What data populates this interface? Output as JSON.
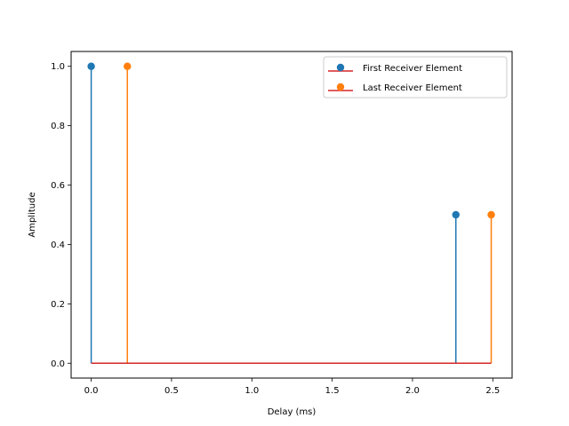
{
  "chart_data": {
    "type": "stem",
    "xlabel": "Delay (ms)",
    "ylabel": "Amplitude",
    "xlim": [
      -0.125,
      2.62
    ],
    "ylim": [
      -0.05,
      1.05
    ],
    "xticks": [
      0.0,
      0.5,
      1.0,
      1.5,
      2.0,
      2.5
    ],
    "xtick_labels": [
      "0.0",
      "0.5",
      "1.0",
      "1.5",
      "2.0",
      "2.5"
    ],
    "yticks": [
      0.0,
      0.2,
      0.4,
      0.6,
      0.8,
      1.0
    ],
    "ytick_labels": [
      "0.0",
      "0.2",
      "0.4",
      "0.6",
      "0.8",
      "1.0"
    ],
    "grid": false,
    "legend_position": "top-right",
    "baseline": {
      "y": 0,
      "x_range": [
        0.0,
        2.49
      ],
      "color": "#d62728"
    },
    "series": [
      {
        "name": "First Receiver Element",
        "color": "#1f77b4",
        "x": [
          0.0,
          2.27
        ],
        "y": [
          1.0,
          0.5
        ]
      },
      {
        "name": "Last Receiver Element",
        "color": "#ff7f0e",
        "x": [
          0.225,
          2.49
        ],
        "y": [
          1.0,
          0.5
        ]
      }
    ]
  }
}
